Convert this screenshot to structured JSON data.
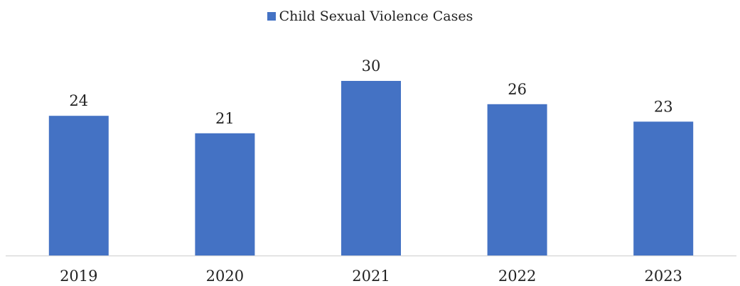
{
  "chart_data": {
    "type": "bar",
    "categories": [
      "2019",
      "2020",
      "2021",
      "2022",
      "2023"
    ],
    "series": [
      {
        "name": "Child Sexual Violence Cases",
        "values": [
          24,
          21,
          30,
          26,
          23
        ],
        "color": "#4472C4"
      }
    ],
    "data_labels": [
      "24",
      "21",
      "30",
      "26",
      "23"
    ],
    "title": "",
    "xlabel": "",
    "ylabel": "",
    "legend_position": "top-center",
    "grid": false,
    "ylim": [
      0,
      35
    ],
    "baseline_color": "#D9D9D9"
  }
}
